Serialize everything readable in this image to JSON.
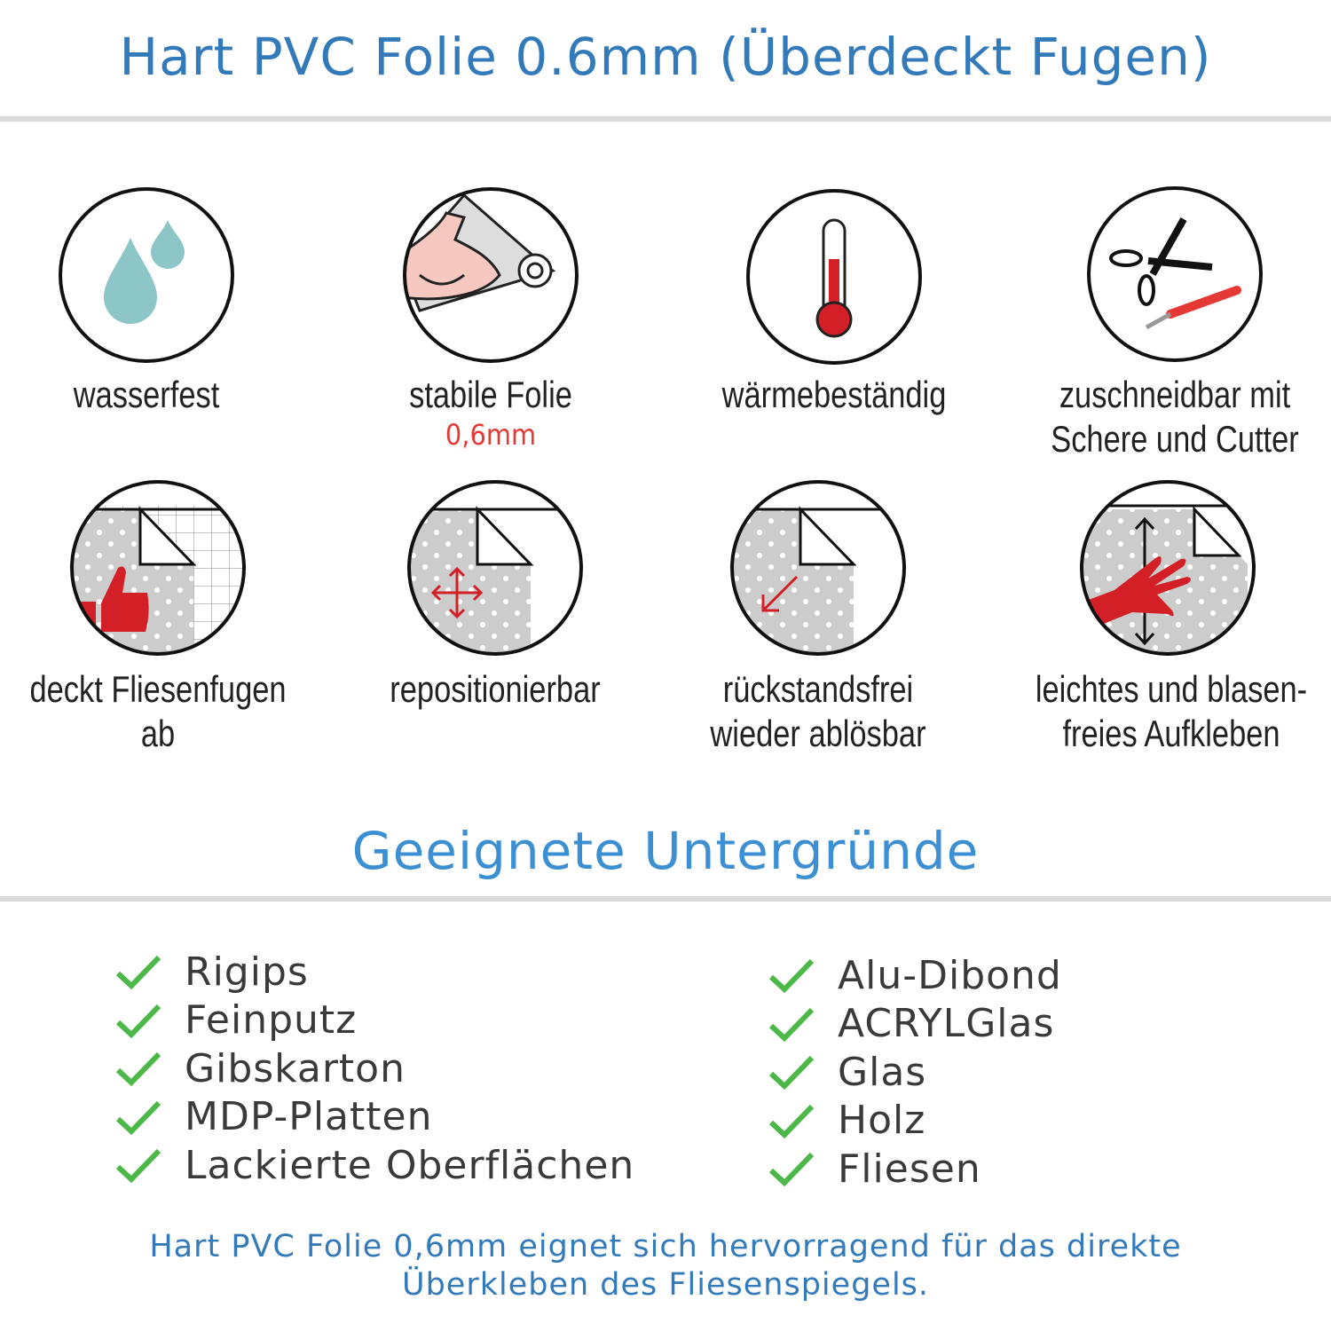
{
  "header": {
    "title": "Hart PVC Folie 0.6mm (Überdeckt Fugen)"
  },
  "features": [
    {
      "icon": "water-drops-icon",
      "label": "wasserfest"
    },
    {
      "icon": "strong-arm-icon",
      "label": "stabile Folie",
      "sub": "0,6mm"
    },
    {
      "icon": "thermometer-icon",
      "label": "wärmebeständig"
    },
    {
      "icon": "scissors-cutter-icon",
      "label": "zuschneidbar mit",
      "label2": "Schere und Cutter"
    },
    {
      "icon": "thumbs-up-tiles-icon",
      "label": "deckt Fliesenfugen ab"
    },
    {
      "icon": "move-arrows-icon",
      "label": "repositionierbar"
    },
    {
      "icon": "peel-off-icon",
      "label": "rückstandsfrei",
      "label2": "wieder ablösbar"
    },
    {
      "icon": "hand-smooth-icon",
      "label": "leichtes und blasen-",
      "label2": "freies Aufkleben"
    }
  ],
  "surfaces": {
    "title": "Geeignete Untergründe",
    "left": [
      "Rigips",
      "Feinputz",
      "Gibskarton",
      "MDP-Platten",
      "Lackierte Oberflächen"
    ],
    "right": [
      "Alu-Dibond",
      "ACRYLGlas",
      "Glas",
      "Holz",
      "Fliesen"
    ]
  },
  "footer": {
    "line1": "Hart PVC Folie 0,6mm eignet sich hervorragend für das direkte",
    "line2": "Überkleben des Fliesenspiegels."
  },
  "colors": {
    "title": "#337abb",
    "section": "#3b8fd2",
    "check": "#4cb848",
    "accent_red": "#d32027",
    "drop": "#8cc6c6",
    "divider": "#d9d9d9"
  }
}
